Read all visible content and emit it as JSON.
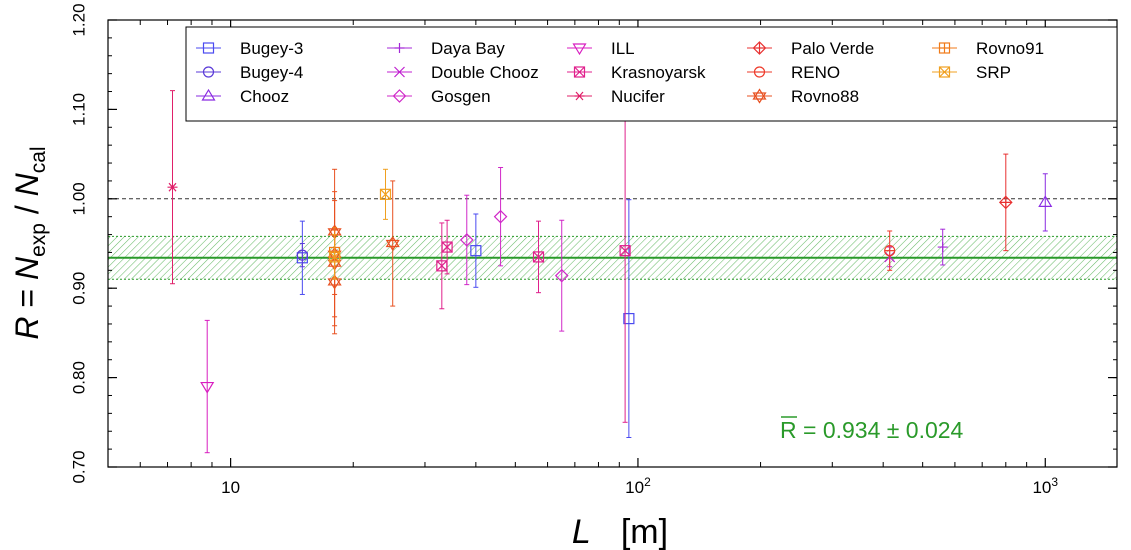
{
  "chart_data": {
    "type": "scatter",
    "x_scale": "log",
    "xlabel_symbol": "L",
    "xlabel_unit": "[m]",
    "ylabel": "R = N_exp / N_cal",
    "xlim": [
      5,
      1500
    ],
    "ylim": [
      0.7,
      1.2
    ],
    "x_ticks": [
      {
        "value": 10,
        "label": "10"
      },
      {
        "value": 100,
        "label": "10^2"
      },
      {
        "value": 1000,
        "label": "10^3"
      }
    ],
    "y_ticks": [
      0.7,
      0.8,
      0.9,
      1.0,
      1.1,
      1.2
    ],
    "y_tick_labels": [
      "0.70",
      "0.80",
      "0.90",
      "1.00",
      "1.10",
      "1.20"
    ],
    "reference_line": 1.0,
    "mean": {
      "value": 0.934,
      "error": 0.024,
      "color": "#2a9a2a"
    },
    "annotation": {
      "text_r": "R",
      "text_rest": " = 0.934 ± 0.024",
      "color": "#2a9a2a"
    },
    "legend_position": "top",
    "series": [
      {
        "name": "Bugey-3",
        "marker": "square",
        "color": "#4a4af0",
        "points": [
          {
            "x": 15,
            "y": 0.934,
            "err": 0.041
          },
          {
            "x": 40,
            "y": 0.942,
            "err": 0.041
          },
          {
            "x": 95,
            "y": 0.866,
            "err": 0.133
          }
        ]
      },
      {
        "name": "Bugey-4",
        "marker": "circle",
        "color": "#5a3ad8",
        "points": [
          {
            "x": 15,
            "y": 0.937,
            "err": 0.013
          }
        ]
      },
      {
        "name": "Chooz",
        "marker": "triangle-up",
        "color": "#8a2be2",
        "points": [
          {
            "x": 1000,
            "y": 0.996,
            "err": 0.032
          }
        ]
      },
      {
        "name": "Daya Bay",
        "marker": "plus",
        "color": "#a428d8",
        "points": [
          {
            "x": 560,
            "y": 0.946,
            "err": 0.02
          }
        ]
      },
      {
        "name": "Double Chooz",
        "marker": "cross",
        "color": "#c020d0",
        "points": [
          {
            "x": 415,
            "y": 0.935,
            "err": 0.011
          }
        ]
      },
      {
        "name": "Gosgen",
        "marker": "diamond",
        "color": "#d028c8",
        "points": [
          {
            "x": 38,
            "y": 0.954,
            "err": 0.05
          },
          {
            "x": 46,
            "y": 0.98,
            "err": 0.055
          },
          {
            "x": 65,
            "y": 0.914,
            "err": 0.062
          }
        ]
      },
      {
        "name": "ILL",
        "marker": "triangle-down",
        "color": "#d81ec0",
        "points": [
          {
            "x": 8.76,
            "y": 0.79,
            "err": 0.074
          }
        ]
      },
      {
        "name": "Krasnoyarsk",
        "marker": "boxed-cross",
        "color": "#e0208c",
        "points": [
          {
            "x": 33,
            "y": 0.925,
            "err": 0.048
          },
          {
            "x": 34,
            "y": 0.946,
            "err": 0.03
          },
          {
            "x": 57,
            "y": 0.935,
            "err": 0.04
          },
          {
            "x": 93,
            "y": 0.942,
            "err": 0.192
          }
        ]
      },
      {
        "name": "Nucifer",
        "marker": "asterisk",
        "color": "#e0206a",
        "points": [
          {
            "x": 7.2,
            "y": 1.013,
            "err": 0.108
          }
        ]
      },
      {
        "name": "Palo Verde",
        "marker": "diamond-plus",
        "color": "#e83030",
        "points": [
          {
            "x": 800,
            "y": 0.996,
            "err": 0.054
          }
        ]
      },
      {
        "name": "RENO",
        "marker": "circle-plus",
        "color": "#ee3a2a",
        "points": [
          {
            "x": 415,
            "y": 0.942,
            "err": 0.022
          }
        ]
      },
      {
        "name": "Rovno88",
        "marker": "star6",
        "color": "#e85020",
        "points": [
          {
            "x": 18,
            "y": 0.963,
            "err": 0.07
          },
          {
            "x": 18,
            "y": 0.938,
            "err": 0.07
          },
          {
            "x": 18,
            "y": 0.928,
            "err": 0.07
          },
          {
            "x": 18,
            "y": 0.907,
            "err": 0.058
          },
          {
            "x": 25,
            "y": 0.95,
            "err": 0.07
          }
        ]
      },
      {
        "name": "Rovno91",
        "marker": "square-plus",
        "color": "#f07a18",
        "points": [
          {
            "x": 18,
            "y": 0.94,
            "err": 0.028
          }
        ]
      },
      {
        "name": "SRP",
        "marker": "square-x",
        "color": "#f0a020",
        "points": [
          {
            "x": 18,
            "y": 0.935,
            "err": 0.025
          },
          {
            "x": 24,
            "y": 1.005,
            "err": 0.028
          }
        ]
      }
    ]
  }
}
